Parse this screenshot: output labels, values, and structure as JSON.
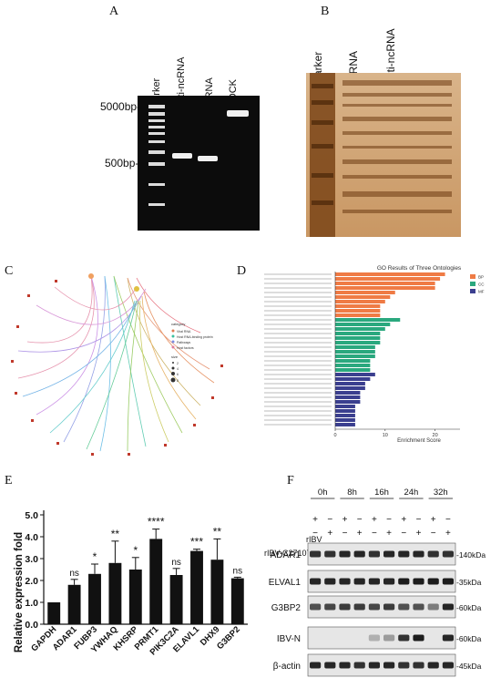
{
  "panels": {
    "A": "A",
    "B": "B",
    "C": "C",
    "D": "D",
    "E": "E",
    "F": "F"
  },
  "panelA": {
    "lanes": [
      "Marker",
      "Anti-ncRNA",
      "ncRNA",
      "MOCK"
    ],
    "size_labels": [
      "5000bp-",
      "500bp-"
    ]
  },
  "panelB": {
    "lanes": [
      "Marker",
      "ncRNA",
      "Anti-ncRNA"
    ]
  },
  "panelC": {
    "legend_title": "category",
    "legend_items": [
      "Viral RNA",
      "Host RNA-binding protein",
      "Pathways",
      "Host factors"
    ],
    "size_title": "size",
    "size_values": [
      "2",
      "4",
      "6",
      "8"
    ]
  },
  "panelD": {
    "chart_data": {
      "type": "bar",
      "orientation": "horizontal",
      "title": "GO Results of Three Ontologies",
      "xlabel": "Enrichment Score",
      "xlim": [
        0,
        25
      ],
      "xticks": [
        0,
        10,
        20
      ],
      "legend": [
        "BP",
        "CC",
        "MF"
      ],
      "colors": {
        "BP": "#ef7b45",
        "CC": "#2aa87e",
        "MF": "#3b3f8f"
      },
      "series": [
        {
          "name": "BP",
          "values": [
            22,
            21,
            20,
            20,
            12,
            11,
            10,
            9,
            9,
            9
          ]
        },
        {
          "name": "CC",
          "values": [
            13,
            11,
            10,
            9,
            9,
            9,
            8,
            8,
            8,
            7,
            7,
            7
          ]
        },
        {
          "name": "MF",
          "values": [
            8,
            7,
            6,
            6,
            5,
            5,
            5,
            4,
            4,
            4,
            4,
            4
          ]
        }
      ]
    }
  },
  "panelE": {
    "chart_data": {
      "type": "bar",
      "ylabel": "Relative expression fold",
      "ylim": [
        0,
        5.0
      ],
      "yticks": [
        "0.0",
        "1.0",
        "2.0",
        "3.0",
        "4.0",
        "5.0"
      ],
      "categories": [
        "GAPDH",
        "ADAR1",
        "FUBP3",
        "YWHAQ",
        "KHSRP",
        "PRMT1",
        "PIK3C2A",
        "ELAVL1",
        "DHX9",
        "G3BP2"
      ],
      "values": [
        1.0,
        1.8,
        2.3,
        2.8,
        2.5,
        3.9,
        2.25,
        3.35,
        2.95,
        2.1
      ],
      "errors": [
        0,
        0.25,
        0.45,
        1.0,
        0.55,
        0.45,
        0.3,
        0.08,
        0.95,
        0.05
      ],
      "significance": [
        "",
        "ns",
        "*",
        "**",
        "*",
        "****",
        "ns",
        "***",
        "**",
        "ns"
      ]
    }
  },
  "panelF": {
    "timepoints": [
      "0h",
      "8h",
      "16h",
      "24h",
      "32h"
    ],
    "row_labels": [
      "rIBV",
      "rIBV-C27107G"
    ],
    "rIBV_marks": [
      "+",
      "−",
      "+",
      "−",
      "+",
      "−",
      "+",
      "−",
      "+",
      "−"
    ],
    "c27107g_marks": [
      "−",
      "+",
      "−",
      "+",
      "−",
      "+",
      "−",
      "+",
      "−",
      "+"
    ],
    "blots": [
      {
        "name": "ADAR1",
        "size": "140kDa"
      },
      {
        "name": "ELVAL1",
        "size": "35kDa"
      },
      {
        "name": "G3BP2",
        "size": "60kDa"
      },
      {
        "name": "IBV-N",
        "size": "60kDa"
      },
      {
        "name": "β-actin",
        "size": "45kDa"
      }
    ]
  }
}
